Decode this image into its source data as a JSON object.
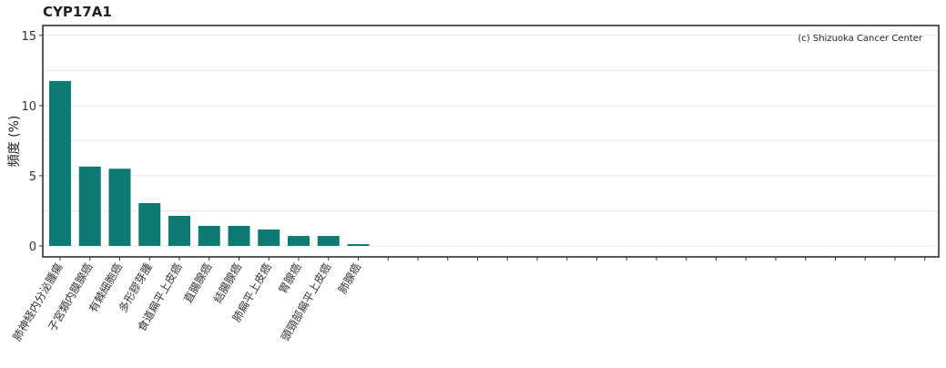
{
  "chart_data": {
    "type": "bar",
    "title": "CYP17A1",
    "ylabel": "頻度 (%)",
    "xlabel": "",
    "annotation": "(c) Shizuoka Cancer Center",
    "ylim": [
      -0.78,
      15.7
    ],
    "yticks": [
      0,
      5,
      10,
      15
    ],
    "grid": true,
    "bar_color": "#0e7b73",
    "categories": [
      "肺神経内分泌腫瘍",
      "子宮類内膜腺癌",
      "有棘細胞癌",
      "多形膠芽腫",
      "食道扁平上皮癌",
      "直腸腺癌",
      "結腸腺癌",
      "肺扁平上皮癌",
      "胃腺癌",
      "頭頸部扁平上皮癌",
      "肺腺癌",
      "",
      "",
      "",
      "",
      "",
      "",
      "",
      "",
      "",
      "",
      "",
      "",
      "",
      "",
      "",
      "",
      "",
      "",
      ""
    ],
    "values": [
      11.75,
      5.65,
      5.5,
      3.05,
      2.14,
      1.43,
      1.43,
      1.17,
      0.71,
      0.71,
      0.13,
      0,
      0,
      0,
      0,
      0,
      0,
      0,
      0,
      0,
      0,
      0,
      0,
      0,
      0,
      0,
      0,
      0,
      0,
      0
    ]
  }
}
